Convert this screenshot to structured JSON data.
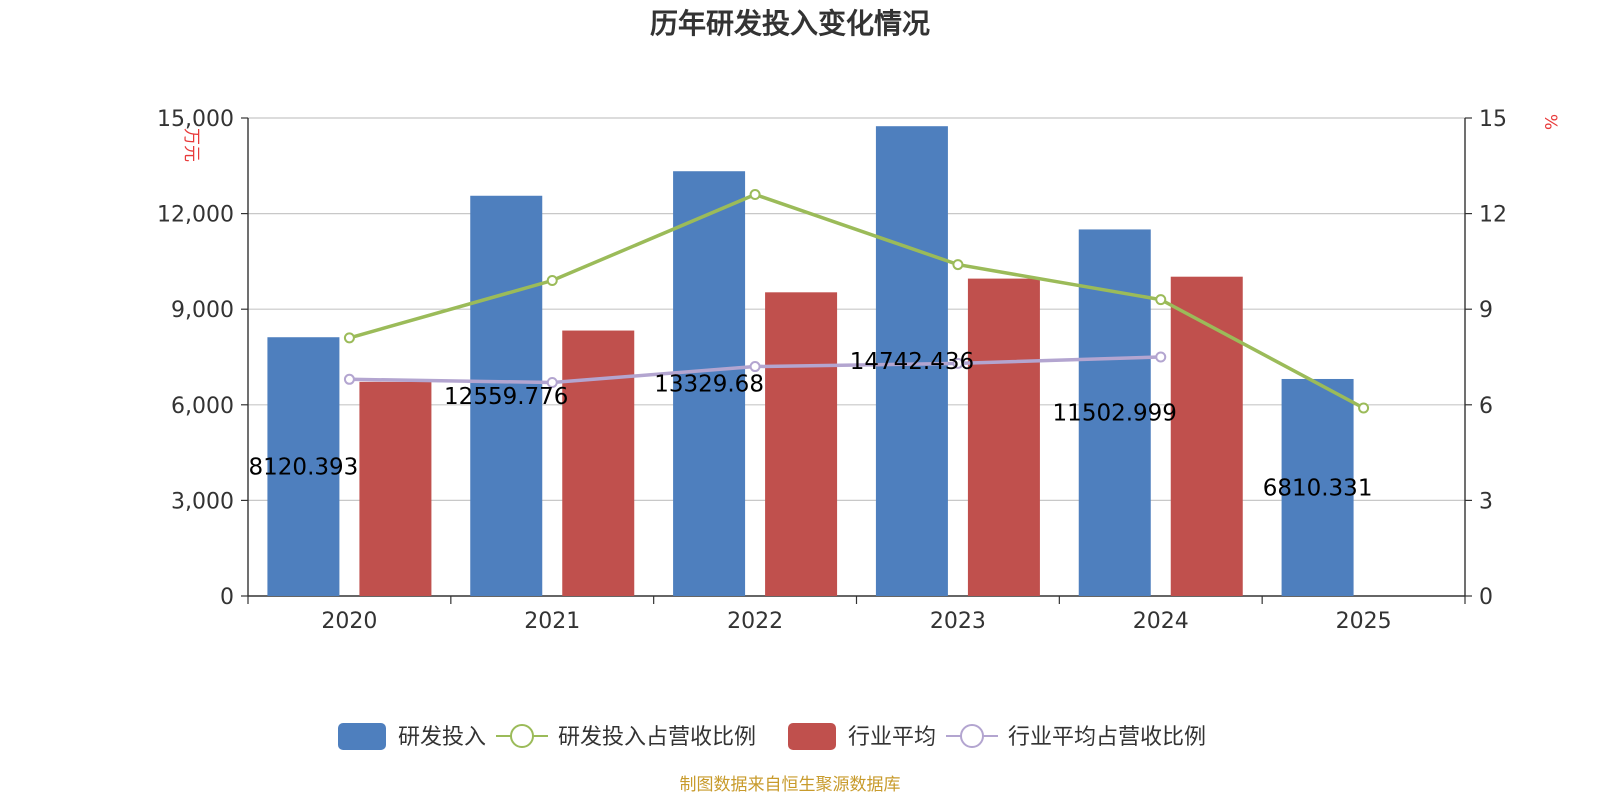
{
  "chart_data": {
    "type": "bar",
    "title": "历年研发投入变化情况",
    "categories": [
      "2020",
      "2021",
      "2022",
      "2023",
      "2024",
      "2025"
    ],
    "y_left": {
      "unit": "万元",
      "ylim": [
        0,
        15000
      ],
      "ticks": [
        "0",
        "3,000",
        "6,000",
        "9,000",
        "12,000",
        "15,000"
      ],
      "tick_values": [
        0,
        3000,
        6000,
        9000,
        12000,
        15000
      ]
    },
    "y_right": {
      "unit": "%",
      "ylim": [
        0,
        15
      ],
      "ticks": [
        "0",
        "3",
        "6",
        "9",
        "12",
        "15"
      ],
      "tick_values": [
        0,
        3,
        6,
        9,
        12,
        15
      ]
    },
    "series": [
      {
        "name": "研发投入",
        "kind": "bar",
        "axis": "left",
        "color": "#4e7fbe",
        "values": [
          8120.393,
          12559.776,
          13329.68,
          14742.436,
          11502.999,
          6810.331
        ],
        "labels": [
          "8120.393",
          "12559.776",
          "13329.68",
          "14742.436",
          "11502.999",
          "6810.331"
        ]
      },
      {
        "name": "研发投入占营收比例",
        "kind": "line",
        "axis": "right",
        "color": "#9bbb59",
        "values": [
          8.1,
          9.9,
          12.6,
          10.4,
          9.3,
          5.9
        ]
      },
      {
        "name": "行业平均",
        "kind": "bar",
        "axis": "left",
        "color": "#c0504d",
        "values": [
          6720,
          8330,
          9530,
          9960,
          10020,
          null
        ]
      },
      {
        "name": "行业平均占营收比例",
        "kind": "line",
        "axis": "right",
        "color": "#b3a5d0",
        "values": [
          6.8,
          6.7,
          7.2,
          7.3,
          7.5,
          null
        ]
      }
    ],
    "legend_position": "bottom",
    "grid": true,
    "source": "制图数据来自恒生聚源数据库"
  }
}
